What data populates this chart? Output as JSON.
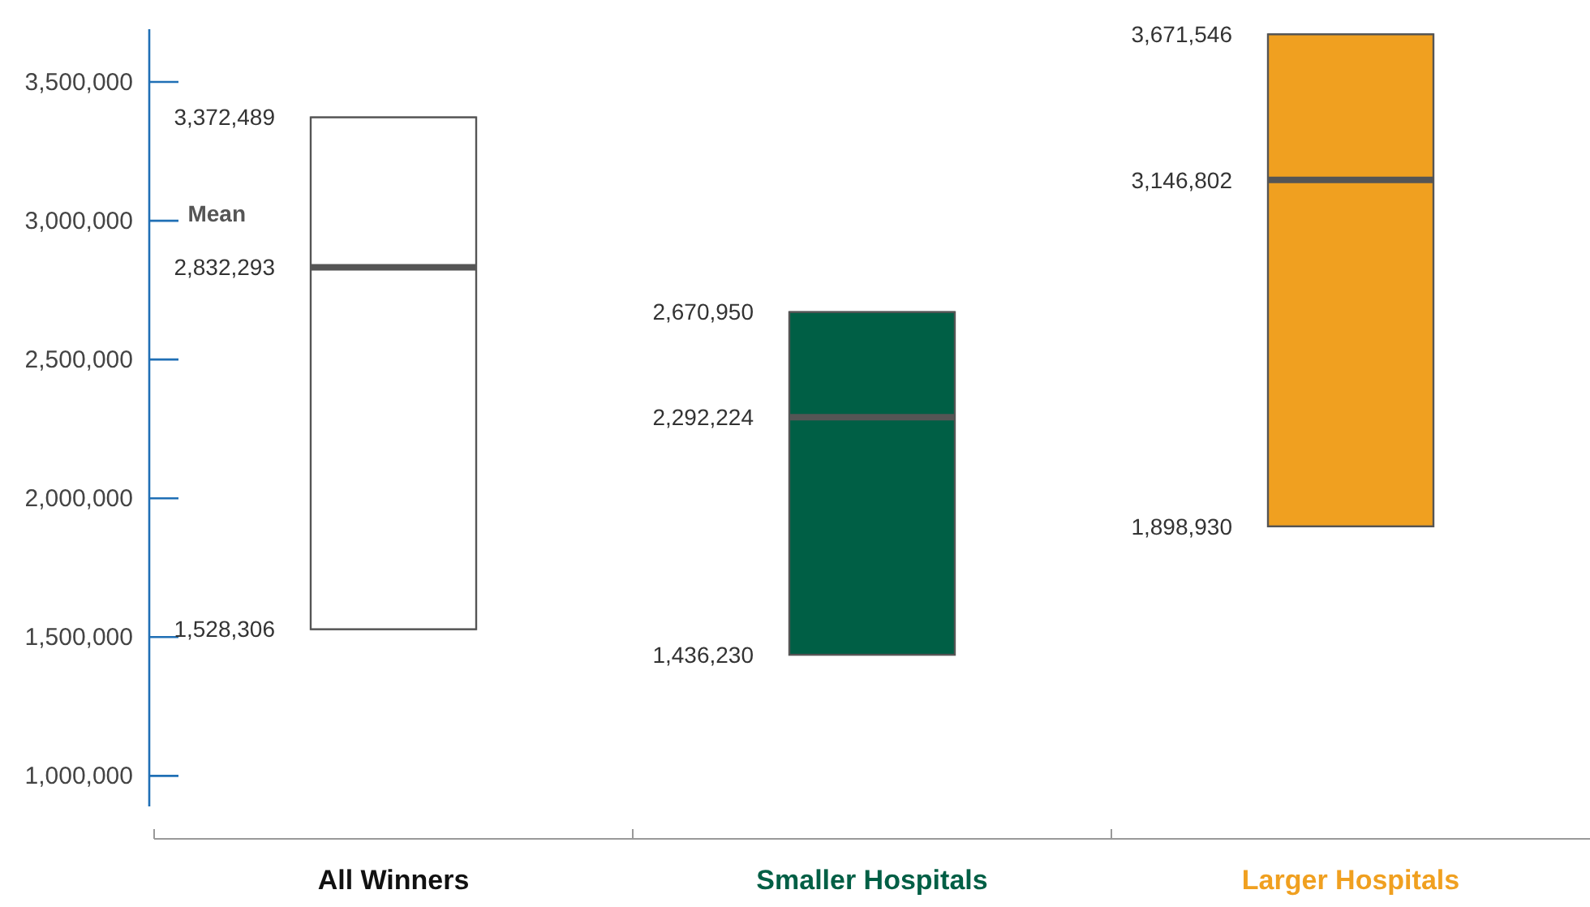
{
  "chart_data": {
    "type": "box",
    "categories": [
      "All Winners",
      "Smaller Hospitals",
      "Larger Hospitals"
    ],
    "colors": [
      "#ffffff",
      "#005f45",
      "#f0a020"
    ],
    "boxes": [
      {
        "low": 1528306,
        "q1": 1528306,
        "median": 2832293,
        "q3": 3372489,
        "high": 3372489
      },
      {
        "low": 1436230,
        "q1": 1436230,
        "median": 2292224,
        "q3": 2670950,
        "high": 2670950
      },
      {
        "low": 1898930,
        "q1": 1898930,
        "median": 3146802,
        "q3": 3671546,
        "high": 3671546
      }
    ],
    "ylim": [
      890000,
      3690000
    ],
    "yticks": [
      {
        "value": 1000000,
        "label": "1,000,000"
      },
      {
        "value": 1500000,
        "label": "1,500,000"
      },
      {
        "value": 2000000,
        "label": "2,000,000"
      },
      {
        "value": 2500000,
        "label": "2,500,000"
      },
      {
        "value": 3000000,
        "label": "3,000,000"
      },
      {
        "value": 3500000,
        "label": "3,500,000"
      }
    ],
    "annotations": [
      "3,372,489",
      "2,832,293",
      "1,528,306",
      "2,670,950",
      "2,292,224",
      "1,436,230",
      "3,671,546",
      "3,146,802",
      "1,898,930",
      "Mean"
    ],
    "grid": false
  }
}
